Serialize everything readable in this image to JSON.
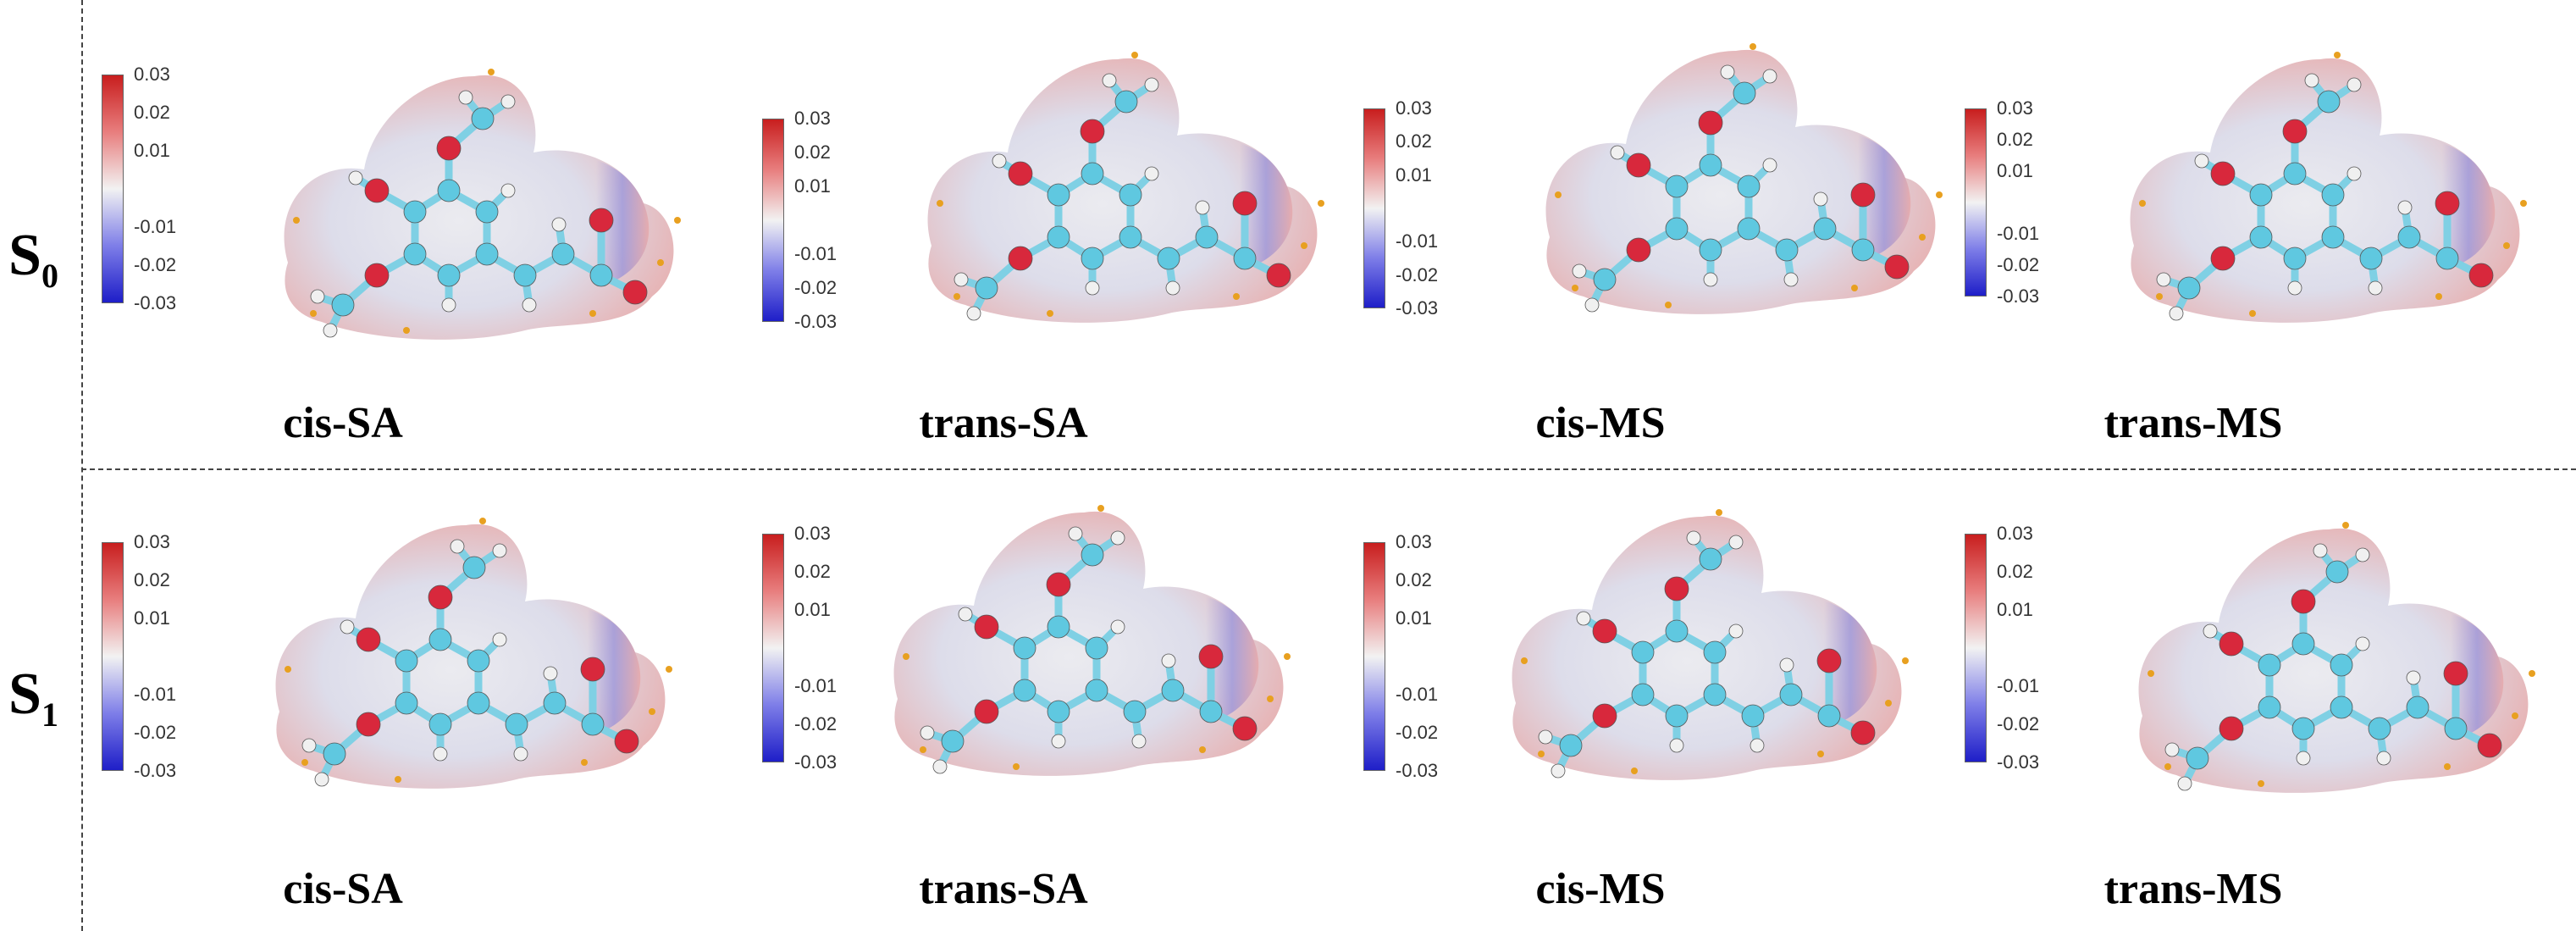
{
  "states": [
    {
      "label": "S",
      "sub": "0"
    },
    {
      "label": "S",
      "sub": "1"
    }
  ],
  "colorbar": {
    "ticks": [
      "0.03",
      "0.02",
      "0.01",
      "-0.01",
      "-0.02",
      "-0.03"
    ],
    "top_color": "#c81e1e",
    "mid_color": "#f2f2f2",
    "bottom_color": "#1e1ec8"
  },
  "panels": [
    {
      "row": 0,
      "name": "cis-SA"
    },
    {
      "row": 0,
      "name": "trans-SA"
    },
    {
      "row": 0,
      "name": "cis-MS"
    },
    {
      "row": 0,
      "name": "trans-MS"
    },
    {
      "row": 1,
      "name": "cis-SA"
    },
    {
      "row": 1,
      "name": "trans-SA"
    },
    {
      "row": 1,
      "name": "cis-MS"
    },
    {
      "row": 1,
      "name": "trans-MS"
    }
  ],
  "atom_colors": {
    "carbon": "#5fc8e0",
    "oxygen": "#d8283c",
    "hydrogen": "#f0f0f0"
  }
}
